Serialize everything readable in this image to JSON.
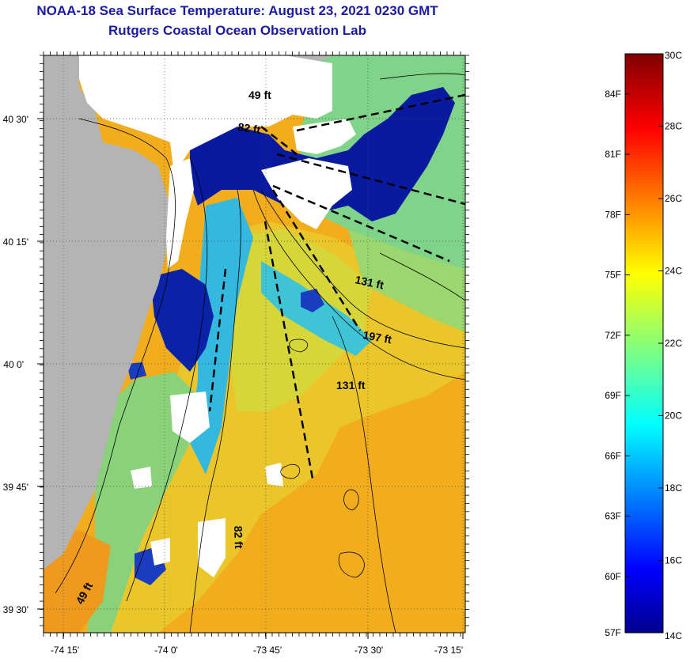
{
  "title_line1": "NOAA-18 Sea Surface Temperature:  August 23, 2021 0230 GMT",
  "title_line2": "Rutgers Coastal Ocean Observation Lab",
  "map": {
    "lat_labels": [
      "40 30'",
      "40 15'",
      "40 0'",
      "39 45'",
      "39 30'"
    ],
    "lon_labels": [
      "-74 15'",
      "-74 0'",
      "-73 45'",
      "-73 30'",
      "-73 15'"
    ],
    "lat_values": [
      40.5,
      40.25,
      40.0,
      39.75,
      39.5
    ],
    "lon_values": [
      -74.25,
      -74.0,
      -73.75,
      -73.5,
      -73.25
    ],
    "depth_labels": [
      "49 ft",
      "82 ft",
      "131 ft",
      "197 ft",
      "131 ft",
      "82 ft",
      "49 ft"
    ],
    "colors": {
      "land": "#b4b4b4",
      "cloud": "#ffffff",
      "warm_ocean": "#f3b21f",
      "mid_ocean": "#e7d435",
      "cool_ocean": "#7fd48a",
      "cold_water": "#0a1aa0"
    }
  },
  "colorbar": {
    "f_labels": [
      "84F",
      "81F",
      "78F",
      "75F",
      "72F",
      "69F",
      "66F",
      "63F",
      "60F",
      "57F"
    ],
    "c_labels": [
      "30C",
      "28C",
      "26C",
      "24C",
      "22C",
      "20C",
      "18C",
      "16C",
      "14C"
    ],
    "f_values": [
      84,
      81,
      78,
      75,
      72,
      69,
      66,
      63,
      60,
      57
    ],
    "c_values": [
      30,
      28,
      26,
      24,
      22,
      20,
      18,
      16,
      14
    ],
    "range_c": [
      14,
      30
    ],
    "colormap": "jet"
  }
}
